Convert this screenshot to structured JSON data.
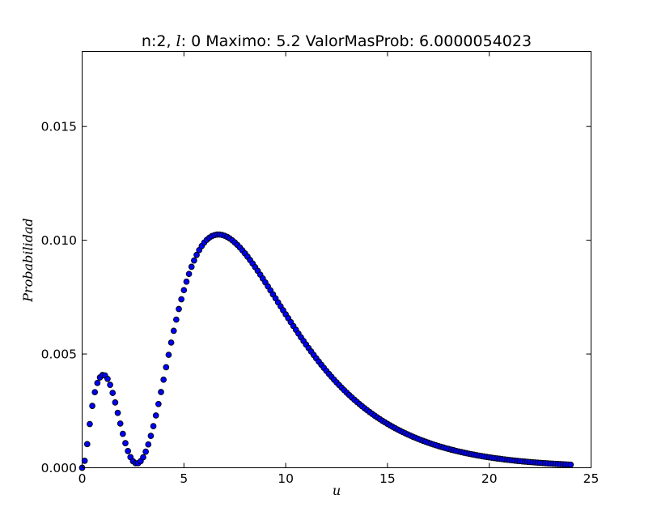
{
  "chart_data": {
    "type": "scatter",
    "title": {
      "prefix": "n:2, ",
      "italic": "l",
      "suffix": ": 0 Maximo: 5.2 ValorMasProb: 6.0000054023"
    },
    "xlabel": "u",
    "ylabel": "Probabilidad",
    "xlim": [
      0,
      25
    ],
    "ylim": [
      0,
      0.0183
    ],
    "xticks": [
      0,
      5,
      10,
      15,
      20,
      25
    ],
    "xtick_labels": [
      "0",
      "5",
      "10",
      "15",
      "20",
      "25"
    ],
    "yticks": [
      0,
      0.005,
      0.01,
      0.015
    ],
    "ytick_labels": [
      "0.000",
      "0.005",
      "0.010",
      "0.015"
    ],
    "grid": false,
    "legend": "none",
    "marker_color": "#0000ff",
    "marker_edge": "#000000",
    "x_start": 0,
    "x_step": 0.125,
    "y": [
      0.0,
      0.000308,
      0.001039,
      0.001921,
      0.00272,
      0.003322,
      0.003727,
      0.003969,
      0.004076,
      0.004054,
      0.003906,
      0.003644,
      0.00329,
      0.00287,
      0.002412,
      0.001943,
      0.001491,
      0.001081,
      0.000735,
      0.000467,
      0.000287,
      0.000198,
      0.0002,
      0.000289,
      0.00046,
      0.000708,
      0.001025,
      0.001402,
      0.001829,
      0.002299,
      0.002802,
      0.003328,
      0.003872,
      0.004419,
      0.004965,
      0.005502,
      0.00602,
      0.006512,
      0.006977,
      0.007405,
      0.007809,
      0.00818,
      0.008521,
      0.008833,
      0.00911,
      0.009354,
      0.009566,
      0.009746,
      0.0099,
      0.01002,
      0.010114,
      0.010182,
      0.010225,
      0.01025,
      0.010252,
      0.010233,
      0.010198,
      0.010147,
      0.010079,
      0.009998,
      0.009903,
      0.009797,
      0.009681,
      0.009554,
      0.009421,
      0.00928,
      0.009131,
      0.008978,
      0.008818,
      0.008655,
      0.008488,
      0.008318,
      0.008147,
      0.007973,
      0.007799,
      0.007622,
      0.007448,
      0.00727,
      0.007096,
      0.006921,
      0.006745,
      0.006573,
      0.006402,
      0.006233,
      0.006065,
      0.005899,
      0.005735,
      0.005574,
      0.005416,
      0.00526,
      0.005108,
      0.004958,
      0.004811,
      0.004668,
      0.004528,
      0.00439,
      0.004256,
      0.004125,
      0.003998,
      0.003873,
      0.003752,
      0.003634,
      0.003519,
      0.003407,
      0.003298,
      0.003192,
      0.003089,
      0.00299,
      0.002892,
      0.002798,
      0.002706,
      0.002618,
      0.002531,
      0.002448,
      0.002367,
      0.002288,
      0.002211,
      0.002138,
      0.002066,
      0.001997,
      0.00193,
      0.001864,
      0.001801,
      0.001741,
      0.001681,
      0.001624,
      0.001568,
      0.001515,
      0.001463,
      0.001413,
      0.001364,
      0.001317,
      0.001271,
      0.001227,
      0.001184,
      0.001143,
      0.001103,
      0.001064,
      0.001026,
      0.00099,
      0.000955,
      0.000922,
      0.000889,
      0.000857,
      0.000827,
      0.000797,
      0.000769,
      0.000741,
      0.000715,
      0.000689,
      0.000664,
      0.00064,
      0.000617,
      0.000595,
      0.000573,
      0.000552,
      0.000532,
      0.000513,
      0.000494,
      0.000476,
      0.000459,
      0.000442,
      0.000425,
      0.00041,
      0.000395,
      0.00038,
      0.000366,
      0.000353,
      0.00034,
      0.000327,
      0.000315,
      0.000303,
      0.000292,
      0.000281,
      0.000271,
      0.000261,
      0.000251,
      0.000242,
      0.000233,
      0.000224,
      0.000215,
      0.000207,
      0.0002,
      0.000192,
      0.000185,
      0.000178,
      0.000171,
      0.000165,
      0.000159,
      0.000153,
      0.000147,
      0.000141,
      0.000136
    ]
  }
}
